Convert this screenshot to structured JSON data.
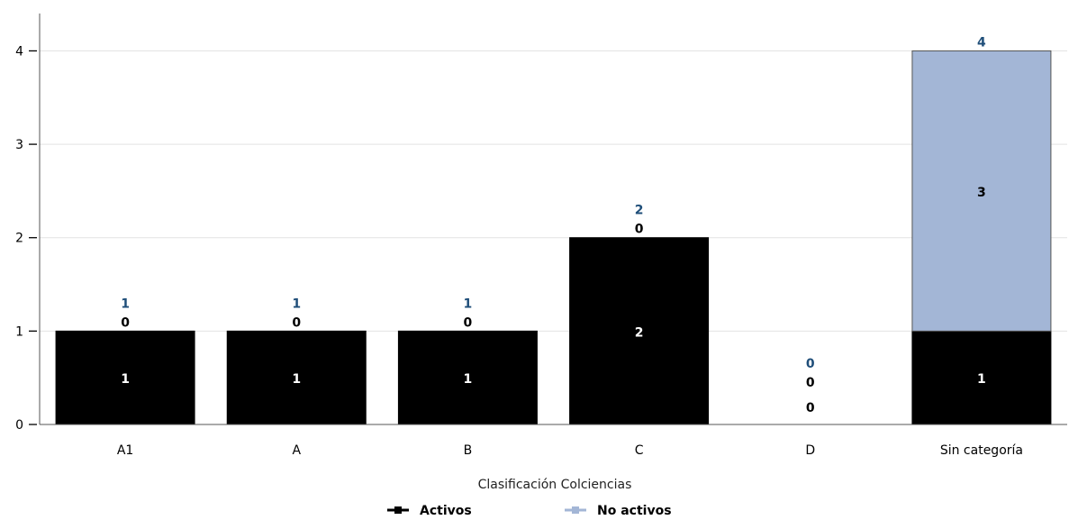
{
  "chart_data": {
    "type": "bar",
    "stacked": true,
    "title": "",
    "xlabel": "Clasificación Colciencias",
    "ylabel": "",
    "ylim": [
      0,
      4.4
    ],
    "yticks": [
      0,
      1,
      2,
      3,
      4
    ],
    "categories": [
      "A1",
      "A",
      "B",
      "C",
      "D",
      "Sin categoría"
    ],
    "series": [
      {
        "name": "Activos",
        "color": "#000000",
        "values": [
          1,
          1,
          1,
          2,
          0,
          1
        ]
      },
      {
        "name": "No activos",
        "color": "#a3b6d6",
        "values": [
          0,
          0,
          0,
          0,
          0,
          3
        ]
      }
    ],
    "totals": [
      1,
      1,
      1,
      2,
      0,
      4
    ],
    "total_label_color": "#1f4e79",
    "grid": true,
    "legend_position": "bottom"
  }
}
